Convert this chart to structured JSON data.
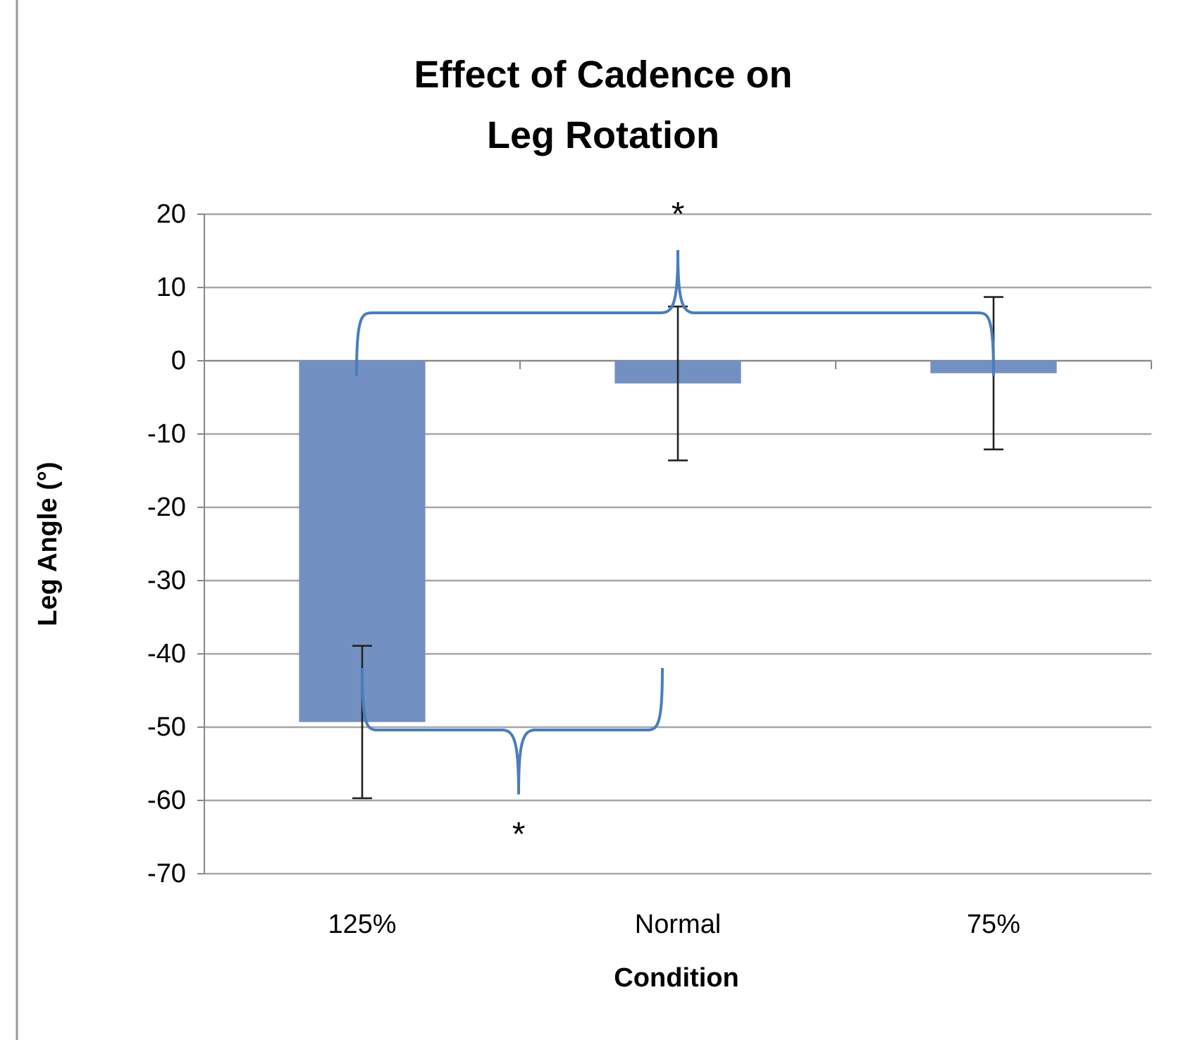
{
  "chart_data": {
    "type": "bar",
    "title": "Effect of Cadence on\nLeg Rotation",
    "xlabel": "Condition",
    "ylabel": "Leg Angle (°)",
    "categories": [
      "125%",
      "Normal",
      "75%"
    ],
    "values": [
      -49.3,
      -3.1,
      -1.7
    ],
    "errors": [
      10.4,
      10.5,
      10.4
    ],
    "color": "#7390c2",
    "ylim": [
      -70,
      20
    ],
    "yticks": [
      -70,
      -60,
      -50,
      -40,
      -30,
      -20,
      -10,
      0,
      10,
      20
    ],
    "grid": "y",
    "annotations": [
      "*",
      "*"
    ]
  }
}
